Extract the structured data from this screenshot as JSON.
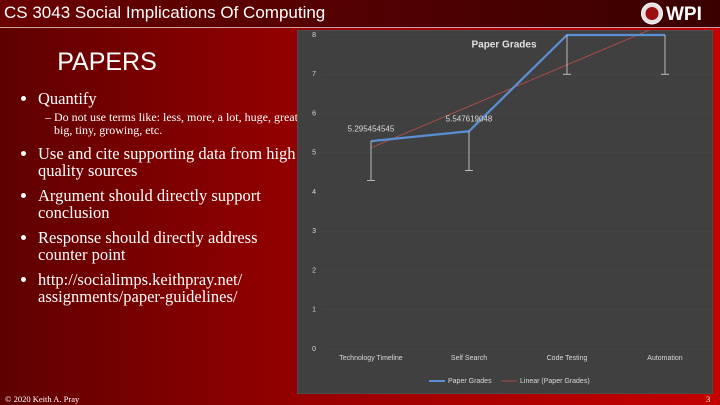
{
  "header": {
    "title": "CS 3043 Social Implications Of Computing",
    "logo": "WPI"
  },
  "slide": {
    "title": "PAPERS",
    "bullets": [
      {
        "text": "Quantify",
        "sub": [
          "Do not use terms like: less, more, a lot, huge, great, big, tiny, growing, etc."
        ]
      },
      {
        "text": "Use and cite supporting data from high quality sources"
      },
      {
        "text": "Argument should directly support conclusion"
      },
      {
        "text": "Response should directly address counter point"
      },
      {
        "text": "http://socialimps.keithpray.net/ assignments/paper-guidelines/"
      }
    ]
  },
  "footer": {
    "copyright": "© 2020 Keith A. Pray",
    "page": "3"
  },
  "chart_data": {
    "type": "line",
    "title": "Paper Grades",
    "categories": [
      "Technology Timeline",
      "Self Search",
      "Code Testing",
      "Automation"
    ],
    "series": [
      {
        "name": "Paper Grades",
        "color": "#5b8fd4",
        "values": [
          5.295454545,
          5.547619048,
          8,
          8
        ],
        "value_labels": [
          "5.295454545",
          "5.547619048",
          null,
          null
        ],
        "errors": [
          1,
          1,
          1,
          1
        ],
        "error_direction": "minus"
      }
    ],
    "trendline": {
      "type": "linear",
      "name": "Linear (Paper Grades)",
      "color": "#c0504d"
    },
    "ylim": [
      0,
      8
    ],
    "yticks": [
      0,
      1,
      2,
      3,
      4,
      5,
      6,
      7,
      8
    ],
    "grid": true,
    "legend": "bottom"
  }
}
